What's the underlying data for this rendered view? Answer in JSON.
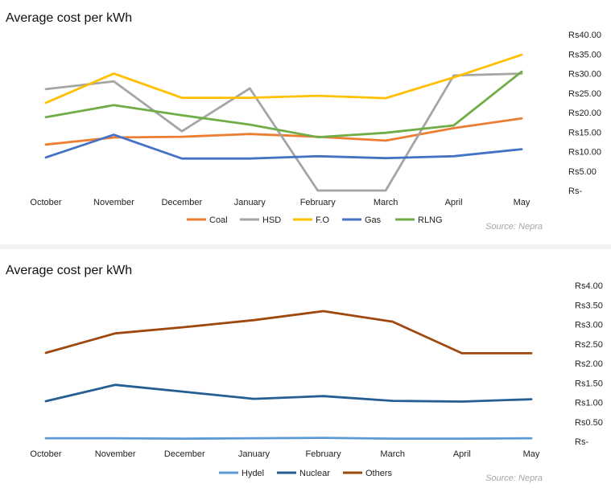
{
  "chart_data": [
    {
      "type": "line",
      "title": "Average cost per kWh",
      "categories": [
        "October",
        "November",
        "December",
        "January",
        "February",
        "March",
        "April",
        "May"
      ],
      "ylim": [
        0,
        40
      ],
      "yticks": [
        "Rs-",
        "Rs5.00",
        "Rs10.00",
        "Rs15.00",
        "Rs20.00",
        "Rs25.00",
        "Rs30.00",
        "Rs35.00",
        "Rs40.00"
      ],
      "source": "Source: Nepra",
      "grid": false,
      "legend": "bottom",
      "series": [
        {
          "name": "Coal",
          "color": "#ed7d31",
          "values": [
            11.8,
            13.6,
            13.8,
            14.5,
            13.8,
            12.8,
            16.0,
            18.5
          ]
        },
        {
          "name": "HSD",
          "color": "#a5a5a5",
          "values": [
            26.0,
            28.0,
            15.2,
            26.2,
            0.0,
            0.0,
            29.5,
            30.0
          ]
        },
        {
          "name": "F.O",
          "color": "#ffc000",
          "values": [
            22.5,
            30.0,
            23.8,
            23.8,
            24.3,
            23.7,
            29.0,
            34.8
          ]
        },
        {
          "name": "Gas",
          "color": "#4472c4",
          "values": [
            8.5,
            14.3,
            8.2,
            8.2,
            8.8,
            8.3,
            8.8,
            10.6
          ]
        },
        {
          "name": "RLNG",
          "color": "#70ad47",
          "values": [
            18.8,
            21.9,
            19.3,
            16.9,
            13.7,
            14.8,
            16.7,
            30.5
          ]
        }
      ]
    },
    {
      "type": "line",
      "title": "Average cost per kWh",
      "categories": [
        "October",
        "November",
        "December",
        "January",
        "February",
        "March",
        "April",
        "May"
      ],
      "ylim": [
        0,
        4
      ],
      "yticks": [
        "Rs-",
        "Rs0.50",
        "Rs1.00",
        "Rs1.50",
        "Rs2.00",
        "Rs2.50",
        "Rs3.00",
        "Rs3.50",
        "Rs4.00"
      ],
      "source": "Source: Nepra",
      "grid": false,
      "legend": "bottom",
      "series": [
        {
          "name": "Hydel",
          "color": "#5b9bd5",
          "values": [
            0.08,
            0.08,
            0.07,
            0.08,
            0.09,
            0.07,
            0.07,
            0.08
          ]
        },
        {
          "name": "Nuclear",
          "color": "#255e91",
          "values": [
            1.03,
            1.45,
            1.27,
            1.09,
            1.16,
            1.04,
            1.02,
            1.08
          ]
        },
        {
          "name": "Others",
          "color": "#9e480e",
          "values": [
            2.27,
            2.77,
            2.93,
            3.11,
            3.34,
            3.07,
            2.26,
            2.26
          ]
        }
      ]
    }
  ]
}
